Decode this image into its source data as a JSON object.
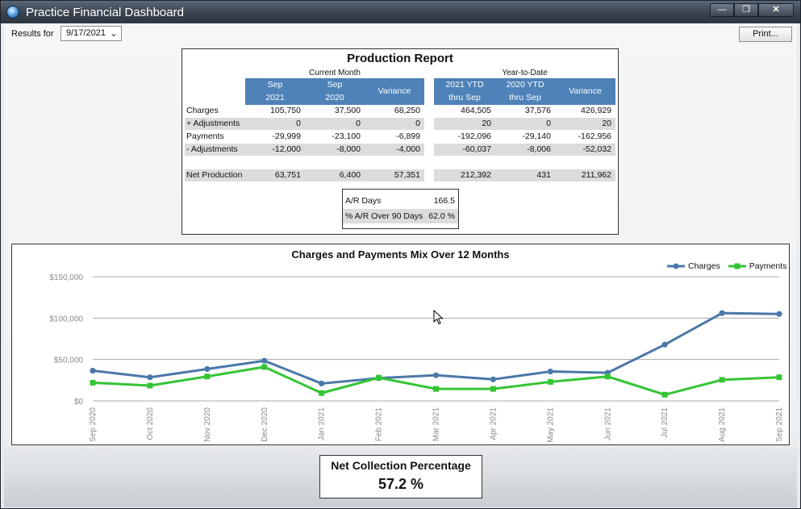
{
  "window": {
    "title": "Practice Financial Dashboard",
    "minimize": "—",
    "restore": "❒",
    "close": "✕"
  },
  "toolbar": {
    "results_label": "Results for",
    "date_value": "9/17/2021",
    "print_label": "Print..."
  },
  "report": {
    "title": "Production Report",
    "current_month_label": "Current Month",
    "ytd_label": "Year-to-Date",
    "columns": [
      {
        "line1": "Sep",
        "line2": "2021"
      },
      {
        "line1": "Sep",
        "line2": "2020"
      },
      {
        "line1": "Variance",
        "line2": ""
      },
      {
        "line1": "2021 YTD",
        "line2": "thru Sep"
      },
      {
        "line1": "2020 YTD",
        "line2": "thru Sep"
      },
      {
        "line1": "Variance",
        "line2": ""
      }
    ],
    "rows": [
      {
        "label": "Charges",
        "values": [
          "105,750",
          "37,500",
          "68,250",
          "464,505",
          "37,576",
          "426,929"
        ],
        "shaded": false
      },
      {
        "label": "+ Adjustments",
        "values": [
          "0",
          "0",
          "0",
          "20",
          "0",
          "20"
        ],
        "shaded": true
      },
      {
        "label": "Payments",
        "values": [
          "-29,999",
          "-23,100",
          "-6,899",
          "-192,096",
          "-29,140",
          "-162,956"
        ],
        "shaded": false
      },
      {
        "label": "- Adjustments",
        "values": [
          "-12,000",
          "-8,000",
          "-4,000",
          "-60,037",
          "-8,006",
          "-52,032"
        ],
        "shaded": true
      },
      {
        "label": "Net Production",
        "values": [
          "63,751",
          "6,400",
          "57,351",
          "212,392",
          "431",
          "211,962"
        ],
        "shaded": true
      }
    ],
    "ar": {
      "days_label": "A/R Days",
      "days_value": "166.5",
      "over90_label": "% A/R Over 90 Days",
      "over90_value": "62.0 %"
    }
  },
  "chart_data": {
    "type": "line",
    "title": "Charges and Payments Mix Over 12 Months",
    "categories": [
      "Sep 2020",
      "Oct 2020",
      "Nov 2020",
      "Dec 2020",
      "Jan 2021",
      "Feb 2021",
      "Mar 2021",
      "Apr 2021",
      "May 2021",
      "Jun 2021",
      "Jul 2021",
      "Aug 2021",
      "Sep 2021"
    ],
    "series": [
      {
        "name": "Charges",
        "color": "#4a78a8",
        "marker": "circle",
        "values": [
          36500,
          28500,
          38500,
          48500,
          21000,
          27500,
          31000,
          26000,
          35500,
          34000,
          68000,
          106000,
          105000
        ]
      },
      {
        "name": "Payments",
        "color": "#35c435",
        "marker": "square",
        "values": [
          22000,
          18500,
          29500,
          41000,
          9500,
          28000,
          14500,
          14500,
          23000,
          29500,
          7500,
          25500,
          28500
        ]
      }
    ],
    "yticks": [
      "$0",
      "$50,000",
      "$100,000",
      "$150,000"
    ],
    "ylim": [
      0,
      150000
    ],
    "grid": true,
    "legend": "top-right"
  },
  "ncp": {
    "title": "Net Collection Percentage",
    "value": "57.2 %"
  }
}
